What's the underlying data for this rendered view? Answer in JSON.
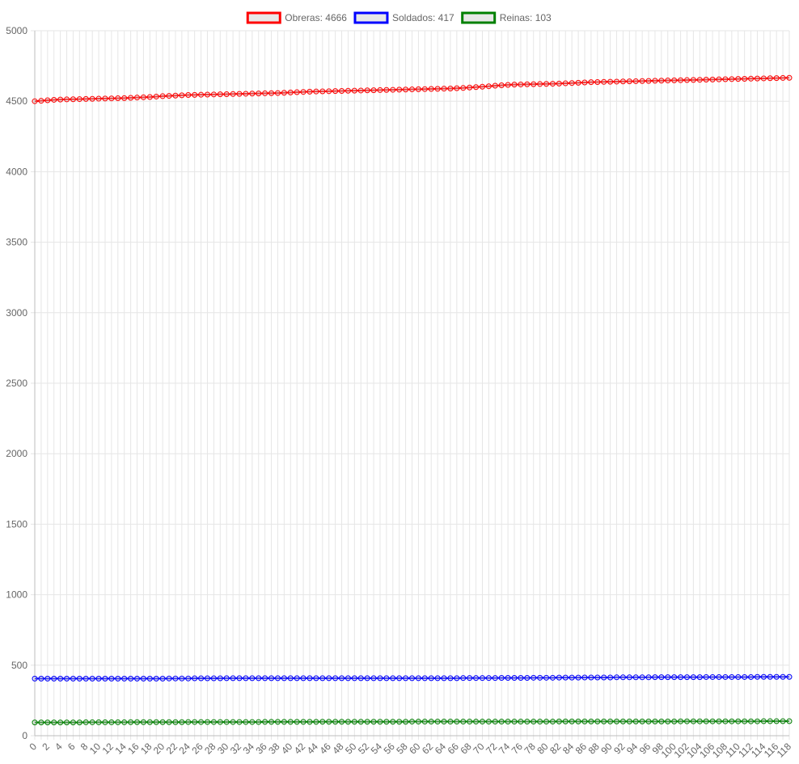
{
  "chart_data": {
    "type": "line",
    "x": [
      0,
      1,
      2,
      3,
      4,
      5,
      6,
      7,
      8,
      9,
      10,
      11,
      12,
      13,
      14,
      15,
      16,
      17,
      18,
      19,
      20,
      21,
      22,
      23,
      24,
      25,
      26,
      27,
      28,
      29,
      30,
      31,
      32,
      33,
      34,
      35,
      36,
      37,
      38,
      39,
      40,
      41,
      42,
      43,
      44,
      45,
      46,
      47,
      48,
      49,
      50,
      51,
      52,
      53,
      54,
      55,
      56,
      57,
      58,
      59,
      60,
      61,
      62,
      63,
      64,
      65,
      66,
      67,
      68,
      69,
      70,
      71,
      72,
      73,
      74,
      75,
      76,
      77,
      78,
      79,
      80,
      81,
      82,
      83,
      84,
      85,
      86,
      87,
      88,
      89,
      90,
      91,
      92,
      93,
      94,
      95,
      96,
      97,
      98,
      99,
      100,
      101,
      102,
      103,
      104,
      105,
      106,
      107,
      108,
      109,
      110,
      111,
      112,
      113,
      114,
      115,
      116,
      117,
      118
    ],
    "x_tick_labels": [
      "0",
      "2",
      "4",
      "6",
      "8",
      "10",
      "12",
      "14",
      "16",
      "18",
      "20",
      "22",
      "24",
      "26",
      "28",
      "30",
      "32",
      "34",
      "36",
      "38",
      "40",
      "42",
      "44",
      "46",
      "48",
      "50",
      "52",
      "54",
      "56",
      "58",
      "60",
      "62",
      "64",
      "66",
      "68",
      "70",
      "72",
      "74",
      "76",
      "78",
      "80",
      "82",
      "84",
      "86",
      "88",
      "90",
      "92",
      "94",
      "96",
      "98",
      "100",
      "102",
      "104",
      "106",
      "108",
      "110",
      "112",
      "114",
      "116",
      "118"
    ],
    "y_ticks": [
      "0",
      "500",
      "1000",
      "1500",
      "2000",
      "2500",
      "3000",
      "3500",
      "4000",
      "4500",
      "5000"
    ],
    "ylim": [
      0,
      5000
    ],
    "grid": true,
    "legend_position": "top",
    "series": [
      {
        "name": "Obreras: 4666",
        "color": "#ff0000",
        "values": [
          4500,
          4503,
          4507,
          4510,
          4512,
          4513,
          4514,
          4515,
          4516,
          4517,
          4518,
          4519,
          4520,
          4521,
          4522,
          4524,
          4526,
          4528,
          4530,
          4533,
          4536,
          4538,
          4540,
          4542,
          4544,
          4545,
          4546,
          4547,
          4548,
          4549,
          4550,
          4551,
          4552,
          4553,
          4554,
          4555,
          4556,
          4557,
          4558,
          4560,
          4562,
          4564,
          4566,
          4568,
          4569,
          4570,
          4571,
          4572,
          4573,
          4574,
          4575,
          4576,
          4577,
          4578,
          4579,
          4580,
          4581,
          4582,
          4583,
          4584,
          4585,
          4586,
          4587,
          4588,
          4589,
          4590,
          4592,
          4594,
          4597,
          4600,
          4603,
          4606,
          4610,
          4613,
          4616,
          4618,
          4619,
          4620,
          4621,
          4622,
          4623,
          4624,
          4625,
          4627,
          4629,
          4631,
          4633,
          4635,
          4636,
          4637,
          4638,
          4639,
          4640,
          4641,
          4642,
          4643,
          4644,
          4645,
          4646,
          4647,
          4648,
          4649,
          4650,
          4651,
          4652,
          4653,
          4654,
          4655,
          4656,
          4657,
          4658,
          4659,
          4660,
          4661,
          4662,
          4663,
          4664,
          4665,
          4666
        ]
      },
      {
        "name": "Soldados: 417",
        "color": "#0000ff",
        "values": [
          405,
          405,
          405,
          405,
          405,
          405,
          405,
          405,
          405,
          405,
          405,
          405,
          405,
          405,
          405,
          405,
          405,
          405,
          405,
          405,
          405,
          406,
          406,
          406,
          406,
          407,
          407,
          407,
          407,
          407,
          408,
          408,
          408,
          408,
          408,
          408,
          408,
          408,
          408,
          408,
          408,
          408,
          408,
          408,
          408,
          408,
          408,
          408,
          408,
          408,
          408,
          408,
          408,
          408,
          408,
          408,
          408,
          408,
          408,
          408,
          408,
          408,
          408,
          408,
          408,
          408,
          408,
          409,
          409,
          409,
          409,
          409,
          409,
          410,
          410,
          410,
          410,
          410,
          411,
          411,
          411,
          411,
          412,
          412,
          412,
          412,
          413,
          413,
          413,
          413,
          413,
          414,
          414,
          414,
          414,
          414,
          414,
          415,
          415,
          415,
          415,
          415,
          415,
          415,
          415,
          416,
          416,
          416,
          416,
          416,
          416,
          416,
          416,
          417,
          417,
          417,
          417,
          417,
          417
        ]
      },
      {
        "name": "Reinas: 103",
        "color": "#008000",
        "values": [
          94,
          94,
          94,
          94,
          94,
          94,
          94,
          94,
          95,
          95,
          95,
          95,
          95,
          95,
          95,
          96,
          96,
          96,
          96,
          96,
          96,
          96,
          96,
          96,
          97,
          97,
          97,
          97,
          97,
          97,
          97,
          97,
          97,
          97,
          97,
          97,
          98,
          98,
          98,
          98,
          98,
          98,
          98,
          98,
          98,
          99,
          99,
          99,
          99,
          99,
          99,
          99,
          99,
          99,
          99,
          99,
          99,
          99,
          99,
          100,
          100,
          100,
          100,
          100,
          100,
          100,
          100,
          100,
          100,
          100,
          100,
          100,
          100,
          100,
          100,
          100,
          100,
          100,
          100,
          100,
          100,
          100,
          101,
          101,
          101,
          101,
          101,
          101,
          101,
          101,
          101,
          101,
          101,
          101,
          101,
          101,
          101,
          101,
          101,
          101,
          101,
          102,
          102,
          102,
          102,
          102,
          102,
          102,
          102,
          102,
          102,
          102,
          102,
          102,
          103,
          103,
          103,
          103,
          103
        ]
      }
    ]
  }
}
